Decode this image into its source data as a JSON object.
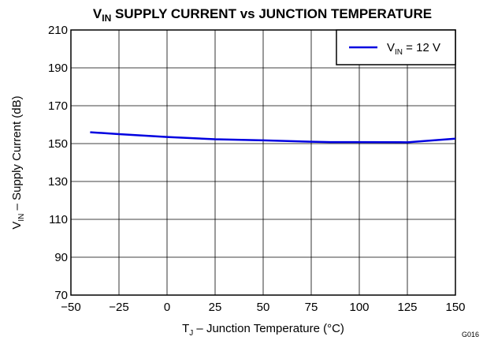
{
  "chart_data": {
    "type": "line",
    "title": [
      "V",
      "IN",
      " SUPPLY CURRENT vs JUNCTION TEMPERATURE"
    ],
    "x_label": [
      "T",
      "J",
      " – Junction Temperature (°C)"
    ],
    "y_label": [
      "V",
      "IN",
      " – Supply Current (dB)"
    ],
    "annotation": "G016",
    "x": [
      -40,
      -25,
      0,
      25,
      50,
      75,
      85,
      100,
      125,
      150
    ],
    "series": [
      {
        "name": [
          "V",
          "IN",
          " = 12 V"
        ],
        "color": "#0000e0",
        "values": [
          156,
          155,
          153.5,
          152.3,
          151.7,
          151,
          150.8,
          150.8,
          150.7,
          152.6
        ]
      }
    ],
    "xlim": [
      -50,
      150
    ],
    "xticks": [
      {
        "value": -50,
        "label": "−50"
      },
      {
        "value": -25,
        "label": "−25"
      },
      0,
      25,
      50,
      75,
      100,
      125,
      150
    ],
    "ylim": [
      70,
      210
    ],
    "yticks": [
      70,
      90,
      110,
      130,
      150,
      170,
      190,
      210
    ],
    "grid": true,
    "legend": "upper right"
  }
}
